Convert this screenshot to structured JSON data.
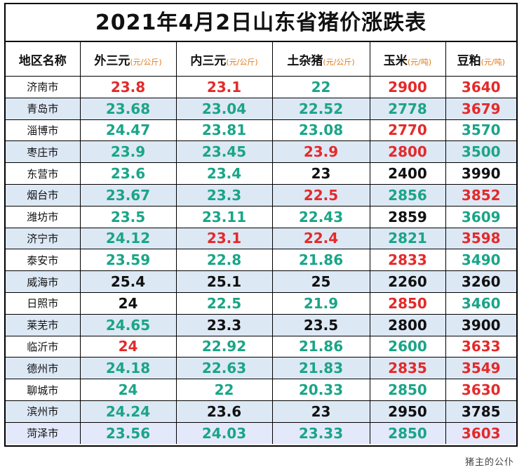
{
  "title": "2021年4月2日山东省猪价涨跌表",
  "watermark": "猪主的公仆",
  "colors": {
    "up": "#e42a2a",
    "down": "#1aa587",
    "flat": "#111111",
    "unit": "#e07b1a",
    "stripe": "#dde8f5"
  },
  "headers": [
    {
      "label": "地区名称",
      "unit": ""
    },
    {
      "label": "外三元",
      "unit": "(元/公斤)"
    },
    {
      "label": "内三元",
      "unit": "(元/公斤)"
    },
    {
      "label": "土杂猪",
      "unit": "(元/公斤)"
    },
    {
      "label": "玉米",
      "unit": "(元/吨)"
    },
    {
      "label": "豆粕",
      "unit": "(元/吨)"
    }
  ],
  "rows": [
    {
      "city": "济南市",
      "cells": [
        {
          "v": "23.8",
          "c": "red"
        },
        {
          "v": "23.1",
          "c": "red"
        },
        {
          "v": "22",
          "c": "green"
        },
        {
          "v": "2900",
          "c": "red"
        },
        {
          "v": "3640",
          "c": "red"
        }
      ]
    },
    {
      "city": "青岛市",
      "cells": [
        {
          "v": "23.68",
          "c": "green"
        },
        {
          "v": "23.04",
          "c": "green"
        },
        {
          "v": "22.52",
          "c": "green"
        },
        {
          "v": "2778",
          "c": "green"
        },
        {
          "v": "3679",
          "c": "red"
        }
      ]
    },
    {
      "city": "淄博市",
      "cells": [
        {
          "v": "24.47",
          "c": "green"
        },
        {
          "v": "23.81",
          "c": "green"
        },
        {
          "v": "23.08",
          "c": "green"
        },
        {
          "v": "2770",
          "c": "red"
        },
        {
          "v": "3570",
          "c": "green"
        }
      ]
    },
    {
      "city": "枣庄市",
      "cells": [
        {
          "v": "23.9",
          "c": "green"
        },
        {
          "v": "23.45",
          "c": "green"
        },
        {
          "v": "23.9",
          "c": "red"
        },
        {
          "v": "2800",
          "c": "red"
        },
        {
          "v": "3500",
          "c": "green"
        }
      ]
    },
    {
      "city": "东营市",
      "cells": [
        {
          "v": "23.6",
          "c": "green"
        },
        {
          "v": "23.4",
          "c": "green"
        },
        {
          "v": "23",
          "c": "black"
        },
        {
          "v": "2400",
          "c": "black"
        },
        {
          "v": "3990",
          "c": "black"
        }
      ]
    },
    {
      "city": "烟台市",
      "cells": [
        {
          "v": "23.67",
          "c": "green"
        },
        {
          "v": "23.3",
          "c": "green"
        },
        {
          "v": "22.5",
          "c": "red"
        },
        {
          "v": "2856",
          "c": "green"
        },
        {
          "v": "3852",
          "c": "red"
        }
      ]
    },
    {
      "city": "潍坊市",
      "cells": [
        {
          "v": "23.5",
          "c": "green"
        },
        {
          "v": "23.11",
          "c": "green"
        },
        {
          "v": "22.43",
          "c": "green"
        },
        {
          "v": "2859",
          "c": "black"
        },
        {
          "v": "3609",
          "c": "green"
        }
      ]
    },
    {
      "city": "济宁市",
      "cells": [
        {
          "v": "24.12",
          "c": "green"
        },
        {
          "v": "23.1",
          "c": "red"
        },
        {
          "v": "22.4",
          "c": "red"
        },
        {
          "v": "2821",
          "c": "green"
        },
        {
          "v": "3598",
          "c": "red"
        }
      ]
    },
    {
      "city": "泰安市",
      "cells": [
        {
          "v": "23.59",
          "c": "green"
        },
        {
          "v": "22.8",
          "c": "green"
        },
        {
          "v": "21.86",
          "c": "green"
        },
        {
          "v": "2833",
          "c": "red"
        },
        {
          "v": "3490",
          "c": "green"
        }
      ]
    },
    {
      "city": "威海市",
      "cells": [
        {
          "v": "25.4",
          "c": "black"
        },
        {
          "v": "25.1",
          "c": "black"
        },
        {
          "v": "25",
          "c": "black"
        },
        {
          "v": "2260",
          "c": "black"
        },
        {
          "v": "3260",
          "c": "black"
        }
      ]
    },
    {
      "city": "日照市",
      "cells": [
        {
          "v": "24",
          "c": "black"
        },
        {
          "v": "22.5",
          "c": "green"
        },
        {
          "v": "21.9",
          "c": "green"
        },
        {
          "v": "2850",
          "c": "red"
        },
        {
          "v": "3460",
          "c": "green"
        }
      ]
    },
    {
      "city": "莱芜市",
      "cells": [
        {
          "v": "24.65",
          "c": "green"
        },
        {
          "v": "23.3",
          "c": "black"
        },
        {
          "v": "23.5",
          "c": "black"
        },
        {
          "v": "2800",
          "c": "black"
        },
        {
          "v": "3900",
          "c": "black"
        }
      ]
    },
    {
      "city": "临沂市",
      "cells": [
        {
          "v": "24",
          "c": "red"
        },
        {
          "v": "22.92",
          "c": "green"
        },
        {
          "v": "21.86",
          "c": "green"
        },
        {
          "v": "2600",
          "c": "green"
        },
        {
          "v": "3633",
          "c": "red"
        }
      ]
    },
    {
      "city": "德州市",
      "cells": [
        {
          "v": "24.18",
          "c": "green"
        },
        {
          "v": "22.63",
          "c": "green"
        },
        {
          "v": "21.83",
          "c": "green"
        },
        {
          "v": "2835",
          "c": "red"
        },
        {
          "v": "3549",
          "c": "red"
        }
      ]
    },
    {
      "city": "聊城市",
      "cells": [
        {
          "v": "24",
          "c": "green"
        },
        {
          "v": "22",
          "c": "green"
        },
        {
          "v": "20.33",
          "c": "green"
        },
        {
          "v": "2850",
          "c": "green"
        },
        {
          "v": "3630",
          "c": "red"
        }
      ]
    },
    {
      "city": "滨州市",
      "cells": [
        {
          "v": "24.24",
          "c": "green"
        },
        {
          "v": "23.6",
          "c": "black"
        },
        {
          "v": "23",
          "c": "black"
        },
        {
          "v": "2950",
          "c": "black"
        },
        {
          "v": "3785",
          "c": "black"
        }
      ]
    },
    {
      "city": "菏泽市",
      "cells": [
        {
          "v": "23.56",
          "c": "green"
        },
        {
          "v": "24.03",
          "c": "green"
        },
        {
          "v": "23.33",
          "c": "green"
        },
        {
          "v": "2850",
          "c": "green"
        },
        {
          "v": "3603",
          "c": "red"
        }
      ]
    }
  ]
}
